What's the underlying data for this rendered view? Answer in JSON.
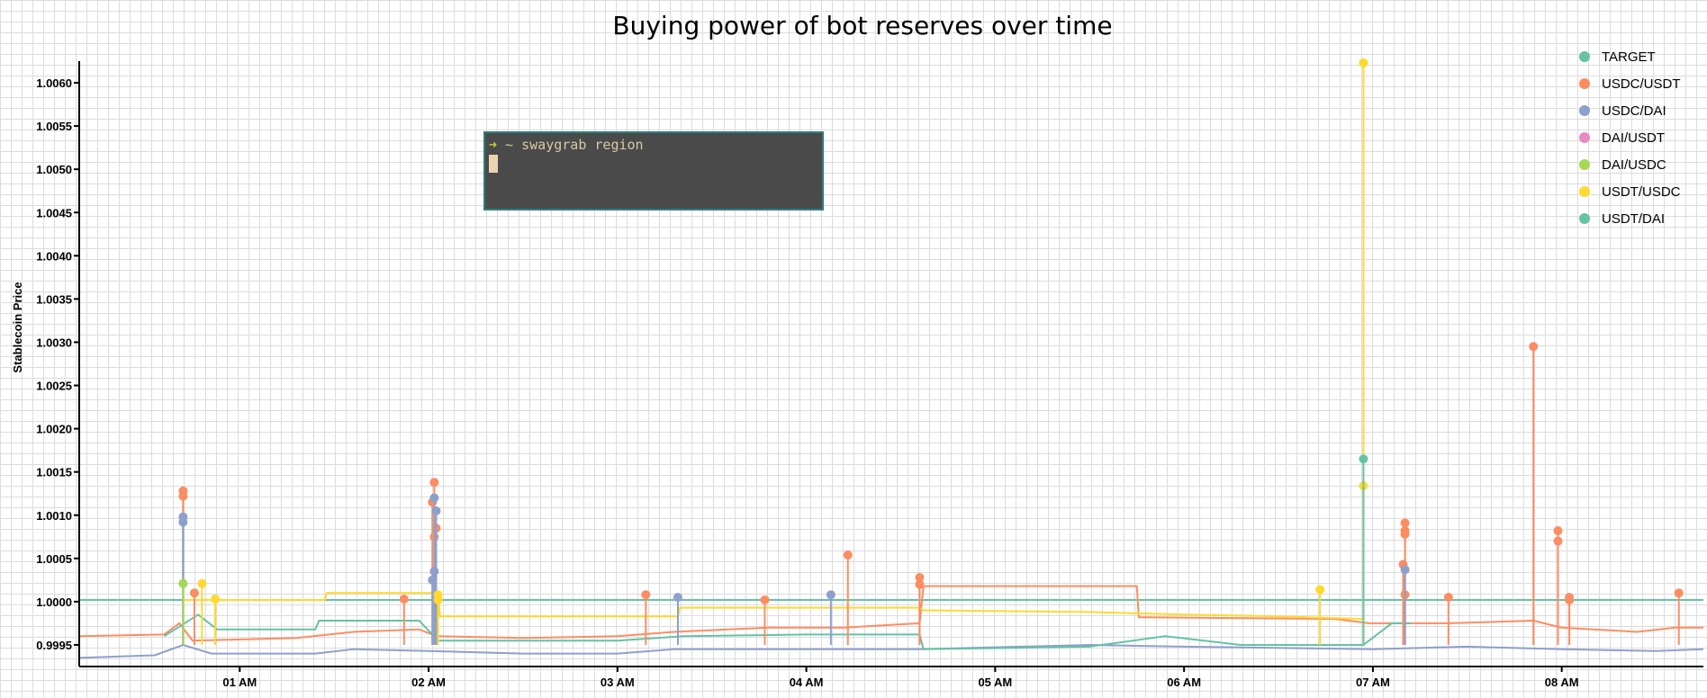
{
  "chart_data": {
    "type": "line",
    "title": "Buying power of bot reserves over time",
    "ylabel": "Stablecoin Price",
    "xlabel": "",
    "x_unit": "hour",
    "xlim": [
      0.15,
      8.75
    ],
    "ylim": [
      0.99925,
      1.00625
    ],
    "yticks": [
      0.9995,
      1.0,
      1.0005,
      1.001,
      1.0015,
      1.002,
      1.0025,
      1.003,
      1.0035,
      1.004,
      1.0045,
      1.005,
      1.0055,
      1.006
    ],
    "xticks": [
      {
        "x": 1,
        "label": "01 AM"
      },
      {
        "x": 2,
        "label": "02 AM"
      },
      {
        "x": 3,
        "label": "03 AM"
      },
      {
        "x": 4,
        "label": "04 AM"
      },
      {
        "x": 5,
        "label": "05 AM"
      },
      {
        "x": 6,
        "label": "06 AM"
      },
      {
        "x": 7,
        "label": "07 AM"
      },
      {
        "x": 8,
        "label": "08 AM"
      }
    ],
    "legend_position": "top-right",
    "grid": true,
    "series": [
      {
        "name": "TARGET",
        "color": "#66c2a5",
        "points": [
          [
            0.15,
            1.00002
          ],
          [
            8.75,
            1.00002
          ]
        ],
        "spikes": []
      },
      {
        "name": "USDC/USDT",
        "color": "#fc8d62",
        "points": [
          [
            0.15,
            0.9996
          ],
          [
            0.6,
            0.99962
          ],
          [
            0.68,
            0.99975
          ],
          [
            0.75,
            0.99955
          ],
          [
            1.3,
            0.99958
          ],
          [
            1.6,
            0.99965
          ],
          [
            1.95,
            0.99968
          ],
          [
            2.04,
            0.9996
          ],
          [
            2.5,
            0.99958
          ],
          [
            3.0,
            0.9996
          ],
          [
            3.3,
            0.99965
          ],
          [
            3.8,
            0.9997
          ],
          [
            4.2,
            0.9997
          ],
          [
            4.6,
            0.99975
          ],
          [
            4.62,
            1.00018
          ],
          [
            5.75,
            1.00018
          ],
          [
            5.76,
            0.99982
          ],
          [
            6.8,
            0.9998
          ],
          [
            6.98,
            0.99975
          ],
          [
            7.4,
            0.99975
          ],
          [
            7.85,
            0.99978
          ],
          [
            8.0,
            0.9997
          ],
          [
            8.4,
            0.99965
          ],
          [
            8.6,
            0.9997
          ],
          [
            8.75,
            0.9997
          ]
        ],
        "spikes": [
          [
            0.7,
            1.00128
          ],
          [
            0.7,
            1.00122
          ],
          [
            0.76,
            1.0001
          ],
          [
            1.87,
            1.00003
          ],
          [
            2.03,
            1.00138
          ],
          [
            2.02,
            1.00115
          ],
          [
            2.04,
            1.00085
          ],
          [
            2.03,
            1.00075
          ],
          [
            3.15,
            1.00008
          ],
          [
            3.78,
            1.00002
          ],
          [
            4.22,
            1.00054
          ],
          [
            4.6,
            1.00028
          ],
          [
            4.6,
            1.0002
          ],
          [
            7.17,
            1.00091
          ],
          [
            7.17,
            1.00082
          ],
          [
            7.17,
            1.00078
          ],
          [
            7.16,
            1.00043
          ],
          [
            7.17,
            1.00008
          ],
          [
            7.4,
            1.00005
          ],
          [
            7.85,
            1.00295
          ],
          [
            7.98,
            1.00082
          ],
          [
            7.98,
            1.0007
          ],
          [
            8.04,
            1.00005
          ],
          [
            8.04,
            1.00002
          ],
          [
            8.62,
            1.0001
          ]
        ]
      },
      {
        "name": "USDC/DAI",
        "color": "#8da0cb",
        "points": [
          [
            0.15,
            0.99935
          ],
          [
            0.55,
            0.99938
          ],
          [
            0.7,
            0.9995
          ],
          [
            0.85,
            0.9994
          ],
          [
            1.4,
            0.9994
          ],
          [
            1.6,
            0.99945
          ],
          [
            2.0,
            0.99943
          ],
          [
            2.5,
            0.9994
          ],
          [
            3.0,
            0.9994
          ],
          [
            3.3,
            0.99945
          ],
          [
            4.0,
            0.99945
          ],
          [
            4.6,
            0.99945
          ],
          [
            5.5,
            0.9995
          ],
          [
            6.0,
            0.99948
          ],
          [
            7.0,
            0.99945
          ],
          [
            7.5,
            0.99948
          ],
          [
            8.0,
            0.99945
          ],
          [
            8.5,
            0.99943
          ],
          [
            8.75,
            0.99945
          ]
        ],
        "spikes": [
          [
            0.7,
            1.00098
          ],
          [
            0.7,
            1.00092
          ],
          [
            2.03,
            1.0012
          ],
          [
            2.04,
            1.00105
          ],
          [
            2.03,
            1.00035
          ],
          [
            2.02,
            1.00025
          ],
          [
            3.32,
            1.00005
          ],
          [
            4.13,
            1.00008
          ],
          [
            7.17,
            1.00037
          ]
        ]
      },
      {
        "name": "DAI/USDT",
        "color": "#e78ac3",
        "points": [],
        "spikes": []
      },
      {
        "name": "DAI/USDC",
        "color": "#a6d854",
        "points": [],
        "spikes": [
          [
            0.7,
            1.00021
          ]
        ]
      },
      {
        "name": "USDT/USDC",
        "color": "#ffd92f",
        "points": [
          [
            0.7,
            1.00002
          ],
          [
            1.45,
            1.00002
          ],
          [
            1.46,
            1.0001
          ],
          [
            2.05,
            1.0001
          ],
          [
            2.06,
            0.99983
          ],
          [
            3.32,
            0.99983
          ],
          [
            3.33,
            0.99993
          ],
          [
            4.6,
            0.99993
          ],
          [
            4.62,
            0.9999
          ],
          [
            5.5,
            0.99988
          ],
          [
            6.0,
            0.99985
          ],
          [
            6.5,
            0.99983
          ],
          [
            6.95,
            0.9998
          ]
        ],
        "spikes": [
          [
            0.8,
            1.00021
          ],
          [
            0.87,
            1.00003
          ],
          [
            2.05,
            1.00008
          ],
          [
            2.05,
            1.00002
          ],
          [
            6.72,
            1.00014
          ],
          [
            6.95,
            1.00623
          ],
          [
            6.95,
            1.00134
          ]
        ]
      },
      {
        "name": "USDT/DAI",
        "color": "#66c2a5",
        "points": [
          [
            0.6,
            0.9996
          ],
          [
            0.78,
            0.99985
          ],
          [
            0.88,
            0.99968
          ],
          [
            1.4,
            0.99968
          ],
          [
            1.42,
            0.99978
          ],
          [
            1.95,
            0.99978
          ],
          [
            2.05,
            0.99955
          ],
          [
            3.0,
            0.99955
          ],
          [
            3.35,
            0.9996
          ],
          [
            4.0,
            0.99962
          ],
          [
            4.6,
            0.99962
          ],
          [
            4.62,
            0.99945
          ],
          [
            5.5,
            0.99948
          ],
          [
            5.9,
            0.9996
          ],
          [
            6.3,
            0.9995
          ],
          [
            6.95,
            0.9995
          ],
          [
            7.1,
            0.99975
          ],
          [
            7.2,
            0.99975
          ]
        ],
        "spikes": [
          [
            6.95,
            1.00165
          ]
        ]
      }
    ]
  },
  "terminal": {
    "prompt_arrow": "➜",
    "command": " ~ swaygrab region"
  }
}
